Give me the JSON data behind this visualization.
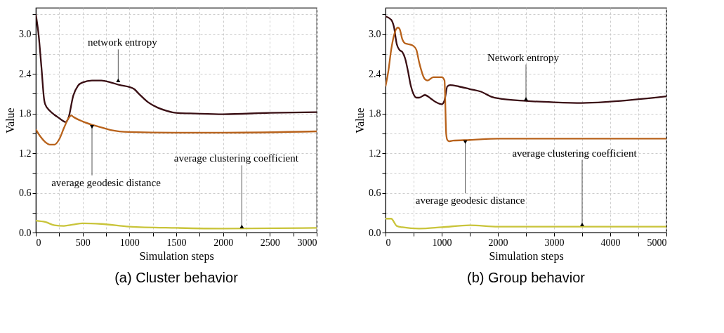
{
  "chart_data": [
    {
      "type": "line",
      "title": "(a) Cluster behavior",
      "xlabel": "Simulation steps",
      "ylabel": "Value",
      "xlim": [
        0,
        3000
      ],
      "ylim": [
        0,
        3.4
      ],
      "xticks": [
        0,
        {
          "value": 250,
          "label": null
        },
        500,
        {
          "value": 750,
          "label": null
        },
        1000,
        {
          "value": 1250,
          "label": null
        },
        1500,
        {
          "value": 1750,
          "label": null
        },
        2000,
        {
          "value": 2250,
          "label": null
        },
        2500,
        {
          "value": 2750,
          "label": null
        },
        3000
      ],
      "yticks": [
        {
          "value": 0,
          "label": "0.0"
        },
        {
          "value": 0.3,
          "label": null
        },
        0.6,
        {
          "value": 0.9,
          "label": null
        },
        1.2,
        {
          "value": 1.5,
          "label": null
        },
        1.8,
        {
          "value": 2.1,
          "label": null
        },
        2.4,
        {
          "value": 2.7,
          "label": null
        },
        {
          "value": 3,
          "label": "3.0"
        },
        {
          "value": 3.3,
          "label": null
        }
      ],
      "grid": true,
      "series": [
        {
          "color": "#3a0f14",
          "x": [
            0,
            30,
            60,
            90,
            100,
            150,
            200,
            250,
            300,
            320,
            350,
            400,
            450,
            500,
            600,
            700,
            800,
            900,
            1000,
            1050,
            1100,
            1200,
            1300,
            1400,
            1500,
            1700,
            2000,
            2500,
            3000
          ],
          "values": [
            3.3,
            2.99,
            2.5,
            2.0,
            1.94,
            1.84,
            1.78,
            1.73,
            1.68,
            1.67,
            1.74,
            2.07,
            2.22,
            2.27,
            2.3,
            2.3,
            2.27,
            2.23,
            2.2,
            2.17,
            2.1,
            1.97,
            1.89,
            1.84,
            1.81,
            1.8,
            1.79,
            1.81,
            1.82
          ]
        },
        {
          "color": "#b8621b",
          "x": [
            0,
            50,
            100,
            150,
            200,
            250,
            300,
            350,
            380,
            400,
            500,
            600,
            700,
            800,
            1000,
            1500,
            2000,
            3000
          ],
          "values": [
            1.56,
            1.45,
            1.37,
            1.33,
            1.33,
            1.41,
            1.58,
            1.73,
            1.77,
            1.75,
            1.68,
            1.63,
            1.59,
            1.55,
            1.52,
            1.51,
            1.51,
            1.53
          ]
        },
        {
          "color": "#c9c43a",
          "x": [
            0,
            100,
            200,
            300,
            400,
            500,
            700,
            1000,
            1500,
            2000,
            3000
          ],
          "values": [
            0.18,
            0.16,
            0.11,
            0.1,
            0.12,
            0.14,
            0.13,
            0.09,
            0.07,
            0.06,
            0.07
          ]
        }
      ],
      "annotations": [
        {
          "text": "network entropy",
          "x": 880,
          "y": 2.27
        },
        {
          "text": "average geodesic distance",
          "x": 600,
          "y": 1.63
        },
        {
          "text": "average clustering coefficient",
          "x": 2200,
          "y": 0.06
        }
      ]
    },
    {
      "type": "line",
      "title": "(b) Group behavior",
      "xlabel": "Simulation steps",
      "ylabel": "Value",
      "xlim": [
        0,
        5000
      ],
      "ylim": [
        0,
        3.4
      ],
      "xticks": [
        0,
        {
          "value": 500,
          "label": null
        },
        1000,
        {
          "value": 1500,
          "label": null
        },
        2000,
        {
          "value": 2500,
          "label": null
        },
        3000,
        {
          "value": 3500,
          "label": null
        },
        4000,
        {
          "value": 4500,
          "label": null
        },
        5000
      ],
      "yticks": [
        {
          "value": 0,
          "label": "0.0"
        },
        {
          "value": 0.3,
          "label": null
        },
        0.6,
        {
          "value": 0.9,
          "label": null
        },
        1.2,
        {
          "value": 1.5,
          "label": null
        },
        1.8,
        {
          "value": 2.1,
          "label": null
        },
        2.4,
        {
          "value": 2.7,
          "label": null
        },
        {
          "value": 3,
          "label": "3.0"
        },
        {
          "value": 3.3,
          "label": null
        }
      ],
      "grid": true,
      "series": [
        {
          "color": "#3a0f14",
          "x": [
            0,
            100,
            150,
            200,
            250,
            300,
            350,
            400,
            450,
            500,
            550,
            600,
            700,
            800,
            900,
            1000,
            1050,
            1100,
            1150,
            1300,
            1500,
            1700,
            1900,
            2000,
            2500,
            3000,
            3500,
            4000,
            5000
          ],
          "values": [
            3.27,
            3.22,
            3.11,
            2.85,
            2.76,
            2.73,
            2.63,
            2.44,
            2.22,
            2.09,
            2.04,
            2.04,
            2.08,
            2.03,
            1.97,
            1.94,
            2.0,
            2.21,
            2.23,
            2.21,
            2.17,
            2.13,
            2.05,
            2.03,
            1.99,
            1.97,
            1.96,
            1.98,
            2.06
          ]
        },
        {
          "color": "#b8621b",
          "x": [
            0,
            50,
            100,
            150,
            220,
            250,
            300,
            350,
            400,
            500,
            550,
            600,
            700,
            750,
            850,
            1000,
            1050,
            1080,
            1100,
            1130,
            1200,
            1500,
            2000,
            3000,
            5000
          ],
          "values": [
            2.21,
            2.44,
            2.76,
            2.98,
            3.1,
            3.08,
            2.92,
            2.86,
            2.85,
            2.82,
            2.76,
            2.57,
            2.32,
            2.3,
            2.35,
            2.35,
            2.3,
            1.49,
            1.4,
            1.38,
            1.39,
            1.4,
            1.42,
            1.42,
            1.42
          ]
        },
        {
          "color": "#c9c43a",
          "x": [
            0,
            100,
            200,
            300,
            600,
            1000,
            1500,
            2000,
            5000
          ],
          "values": [
            0.21,
            0.21,
            0.1,
            0.08,
            0.06,
            0.08,
            0.11,
            0.09,
            0.09
          ]
        }
      ],
      "annotations": [
        {
          "text": "Network entropy",
          "x": 2500,
          "y": 1.99
        },
        {
          "text": "average geodesic distance",
          "x": 1420,
          "y": 1.4
        },
        {
          "text": "average clustering coefficient",
          "x": 3500,
          "y": 0.09
        }
      ]
    }
  ]
}
